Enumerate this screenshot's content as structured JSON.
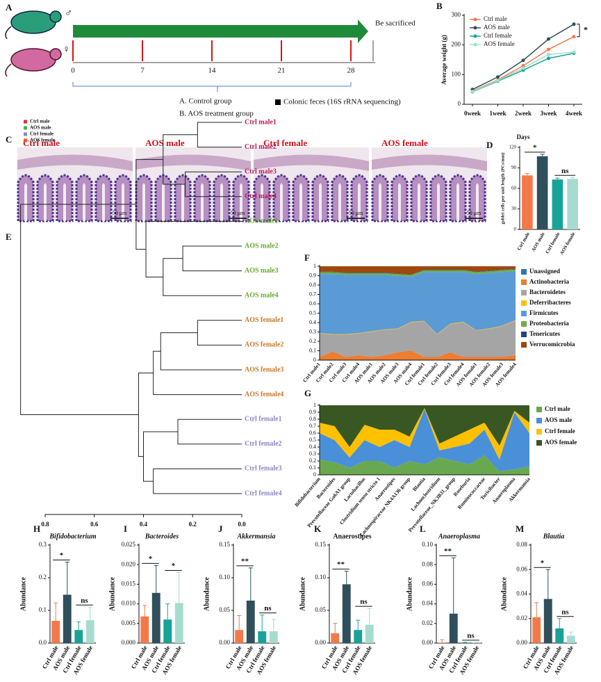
{
  "timeline": {
    "panel_label": "A",
    "male_symbol": "♂",
    "female_symbol": "♀",
    "ticks": [
      0,
      7,
      14,
      21,
      28
    ],
    "end_label": "Be sacrificed",
    "groups": [
      "A.  Control group",
      "B.  AOS treatment group"
    ],
    "sample_label": "Colonic feces (16S rRNA sequencing)"
  },
  "histology": {
    "panel_label": "C",
    "images": [
      {
        "label": "Ctrl male",
        "scale": "50 μm"
      },
      {
        "label": "AOS male",
        "scale": "50 μm"
      },
      {
        "label": "Ctrl female",
        "scale": "50 μm"
      },
      {
        "label": "AOS female",
        "scale": "50 μm"
      }
    ]
  },
  "chart_data": [
    {
      "type": "line",
      "panel_label": "B",
      "ylabel": "Average weight (g)",
      "xlabel": "Days",
      "categories": [
        "0week",
        "1week",
        "2week",
        "3week",
        "4week"
      ],
      "ylim": [
        0,
        300
      ],
      "yticks": [
        0,
        100,
        200,
        300
      ],
      "legend": "upper left",
      "annotations": [
        "*"
      ],
      "series": [
        {
          "name": "Ctrl male",
          "color": "#f4794a",
          "values": [
            45,
            82,
            130,
            185,
            228
          ]
        },
        {
          "name": "AOS male",
          "color": "#2f4f5c",
          "values": [
            50,
            92,
            148,
            220,
            270
          ]
        },
        {
          "name": "Ctrl female",
          "color": "#17a398",
          "values": [
            42,
            78,
            115,
            155,
            172
          ]
        },
        {
          "name": "AOS female",
          "color": "#a6dccf",
          "values": [
            43,
            80,
            122,
            168,
            176
          ]
        }
      ]
    },
    {
      "type": "bar",
      "panel_label": "D",
      "ylabel": "goblet cells per unit length (PCs/mm)",
      "categories": [
        "Ctrl male",
        "AOS male",
        "Ctrl female",
        "AOS female"
      ],
      "colors": [
        "#f4794a",
        "#2f4f5c",
        "#17a398",
        "#a6dccf"
      ],
      "values": [
        79,
        107,
        73,
        74
      ],
      "errors": [
        3,
        3,
        2,
        2
      ],
      "ylim": [
        0,
        120
      ],
      "yticks": [
        0,
        30,
        60,
        90,
        120
      ],
      "annotations": [
        "*",
        "ns"
      ]
    },
    {
      "type": "dendrogram",
      "panel_label": "E",
      "series": [
        {
          "name": "Ctrl male",
          "color": "#e03030"
        },
        {
          "name": "AOS male",
          "color": "#4caf50"
        },
        {
          "name": "Ctrl female",
          "color": "#8888cc"
        },
        {
          "name": "AOS female",
          "color": "#e06020"
        }
      ],
      "leaves": [
        "Ctrl male1",
        "Ctrl male2",
        "Ctrl male3",
        "Ctrl male4",
        "AOS male1",
        "AOS male2",
        "AOS male3",
        "AOS male4",
        "AOS female1",
        "AOS female2",
        "AOS female3",
        "AOS female4",
        "Ctrl female1",
        "Ctrl female2",
        "Ctrl female3",
        "Ctrl female4"
      ],
      "leaf_colors": [
        "#c0185a",
        "#c0185a",
        "#c0185a",
        "#c0185a",
        "#6aa82f",
        "#6aa82f",
        "#6aa82f",
        "#6aa82f",
        "#c87a28",
        "#c87a28",
        "#c87a28",
        "#c87a28",
        "#8a87c8",
        "#8a87c8",
        "#8a87c8",
        "#8a87c8"
      ],
      "merges": [
        [
          0,
          1,
          0.18
        ],
        [
          2,
          3,
          0.23
        ],
        [
          16,
          17,
          0.32
        ],
        [
          5,
          6,
          0.24
        ],
        [
          19,
          7,
          0.32
        ],
        [
          4,
          20,
          0.39
        ],
        [
          18,
          21,
          0.43
        ],
        [
          8,
          9,
          0.18
        ],
        [
          23,
          10,
          0.33
        ],
        [
          24,
          11,
          0.36
        ],
        [
          12,
          13,
          0.26
        ],
        [
          14,
          15,
          0.36
        ],
        [
          26,
          27,
          0.4
        ],
        [
          25,
          28,
          0.42
        ],
        [
          22,
          29,
          0.9
        ]
      ],
      "xlim": [
        0.8,
        0
      ],
      "xticks": [
        0.8,
        0.6,
        0.4,
        0.2,
        {
          "value": 0,
          "label": "0.0"
        }
      ]
    },
    {
      "type": "stacked_area",
      "panel_label": "F",
      "categories": [
        "Ctrl male1",
        "Ctrl male2",
        "Ctrl male3",
        "Ctrl male4",
        "AOS male1",
        "AOS male2",
        "AOS male3",
        "AOS male4",
        "Ctrl female1",
        "Ctrl female2",
        "Ctrl female3",
        "Ctrl female4",
        "AOS female1",
        "AOS female2",
        "AOS female3",
        "AOS female4"
      ],
      "ylim": [
        0,
        1
      ],
      "yticks": [
        0,
        0.1,
        0.2,
        0.3,
        0.4,
        0.5,
        0.6,
        0.7,
        0.8,
        0.9,
        1
      ],
      "series": [
        {
          "name": "Unassigned",
          "color": "#2e75b6",
          "values": [
            0.003,
            0.003,
            0.003,
            0.003,
            0.003,
            0.003,
            0.003,
            0.003,
            0.003,
            0.003,
            0.003,
            0.003,
            0.003,
            0.003,
            0.003,
            0.003
          ]
        },
        {
          "name": "Actinobacteria",
          "color": "#ed7d31",
          "values": [
            0.03,
            0.09,
            0.03,
            0.05,
            0.03,
            0.05,
            0.08,
            0.1,
            0.03,
            0.03,
            0.08,
            0.03,
            0.03,
            0.03,
            0.03,
            0.05
          ]
        },
        {
          "name": "Bacteroidetes",
          "color": "#a5a5a5",
          "values": [
            0.25,
            0.18,
            0.24,
            0.23,
            0.27,
            0.27,
            0.25,
            0.3,
            0.38,
            0.24,
            0.3,
            0.37,
            0.28,
            0.3,
            0.33,
            0.37
          ]
        },
        {
          "name": "Deferribacteres",
          "color": "#ffc000",
          "values": [
            0.005,
            0.005,
            0.005,
            0.005,
            0.005,
            0.005,
            0.005,
            0.005,
            0.005,
            0.005,
            0.005,
            0.005,
            0.005,
            0.005,
            0.005,
            0.005
          ]
        },
        {
          "name": "Firmicutes",
          "color": "#5b9bd5",
          "values": [
            0.63,
            0.64,
            0.63,
            0.62,
            0.6,
            0.58,
            0.56,
            0.48,
            0.52,
            0.66,
            0.55,
            0.53,
            0.6,
            0.59,
            0.57,
            0.52
          ]
        },
        {
          "name": "Proteobacteria",
          "color": "#70ad47",
          "values": [
            0.02,
            0.02,
            0.02,
            0.02,
            0.02,
            0.02,
            0.02,
            0.02,
            0.02,
            0.02,
            0.02,
            0.02,
            0.02,
            0.02,
            0.02,
            0.02
          ]
        },
        {
          "name": "Tenericutes",
          "color": "#264478",
          "values": [
            0.005,
            0.005,
            0.005,
            0.005,
            0.005,
            0.005,
            0.005,
            0.005,
            0.005,
            0.005,
            0.005,
            0.005,
            0.005,
            0.005,
            0.005,
            0.005
          ]
        },
        {
          "name": "Verrucomicrobia",
          "color": "#9e480e",
          "values": [
            0.057,
            0.057,
            0.067,
            0.067,
            0.067,
            0.067,
            0.077,
            0.087,
            0.037,
            0.037,
            0.037,
            0.037,
            0.057,
            0.047,
            0.037,
            0.027
          ]
        }
      ]
    },
    {
      "type": "stacked_area",
      "panel_label": "G",
      "categories": [
        "Bifidobacterium",
        "Bacteroides",
        "Prevotellaceae Ga6A1 group",
        "Lactobacillus",
        "Clostridium sensu stricto 1",
        "Anaerostipes",
        "Lachnospiraceae NK4A136 group",
        "Blautia",
        "Lachnoclostridium",
        "Prevotellaceae_NK3B31_group",
        "Roseburia",
        "Ruminococcaceae",
        "Turicibacter",
        "Anaeroplasma",
        "Akkermansia"
      ],
      "ylim": [
        0,
        1
      ],
      "yticks": [
        0,
        0.1,
        0.2,
        0.3,
        0.4,
        0.5,
        0.6,
        0.7,
        0.8,
        0.9,
        1
      ],
      "series": [
        {
          "name": "Ctrl male",
          "color": "#6aa84f",
          "values": [
            0.22,
            0.18,
            0.1,
            0.2,
            0.2,
            0.1,
            0.2,
            0.15,
            0.25,
            0.2,
            0.15,
            0.28,
            0.05,
            0.08,
            0.12
          ]
        },
        {
          "name": "AOS male",
          "color": "#4a90d9",
          "values": [
            0.38,
            0.32,
            0.15,
            0.3,
            0.2,
            0.4,
            0.2,
            0.8,
            0.1,
            0.2,
            0.3,
            0.37,
            0.17,
            0.82,
            0.48
          ]
        },
        {
          "name": "Ctrl female",
          "color": "#ffc000",
          "values": [
            0.15,
            0.2,
            0.15,
            0.22,
            0.25,
            0.15,
            0.15,
            0.01,
            0.1,
            0.15,
            0.2,
            0.1,
            0.2,
            0.02,
            0.15
          ]
        },
        {
          "name": "AOS female",
          "color": "#385723",
          "values": [
            0.25,
            0.3,
            0.6,
            0.28,
            0.35,
            0.35,
            0.45,
            0.04,
            0.55,
            0.45,
            0.35,
            0.25,
            0.58,
            0.08,
            0.25
          ]
        }
      ]
    },
    {
      "type": "bar",
      "panel_label": "H",
      "title": "Bifidobacterium",
      "italic": true,
      "ylabel": "Abundance",
      "categories": [
        "Ctrl male",
        "AOS male",
        "Ctrl female",
        "AOS female"
      ],
      "colors": [
        "#f4794a",
        "#2f4f5c",
        "#17a398",
        "#a6dccf"
      ],
      "values": [
        0.068,
        0.148,
        0.04,
        0.07
      ],
      "errors": [
        0.055,
        0.1,
        0.025,
        0.04
      ],
      "ylim": [
        0,
        0.3
      ],
      "yticks": [
        {
          "value": 0,
          "label": "0.0"
        },
        0.1,
        0.2,
        0.3
      ],
      "annotations": [
        "*",
        "ns"
      ]
    },
    {
      "type": "bar",
      "panel_label": "I",
      "title": "Bacteroides",
      "italic": true,
      "ylabel": "Abundance",
      "categories": [
        "Ctrl male",
        "AOS male",
        "Ctrl female",
        "AOS female"
      ],
      "colors": [
        "#f4794a",
        "#2f4f5c",
        "#17a398",
        "#a6dccf"
      ],
      "values": [
        0.0068,
        0.0128,
        0.006,
        0.0102
      ],
      "errors": [
        0.0028,
        0.007,
        0.004,
        0.0078
      ],
      "ylim": [
        0,
        0.025
      ],
      "yticks": [
        {
          "value": 0,
          "label": "0.000"
        },
        0.005,
        {
          "value": 0.01,
          "label": "0.010"
        },
        0.015,
        {
          "value": 0.02,
          "label": "0.020"
        },
        0.025
      ],
      "annotations": [
        "*",
        "*"
      ]
    },
    {
      "type": "bar",
      "panel_label": "J",
      "title": "Akkermansia",
      "italic": true,
      "ylabel": "Abundance",
      "categories": [
        "Ctrl male",
        "AOS male",
        "Ctrl female",
        "AOS female"
      ],
      "colors": [
        "#f4794a",
        "#2f4f5c",
        "#17a398",
        "#a6dccf"
      ],
      "values": [
        0.02,
        0.065,
        0.018,
        0.018
      ],
      "errors": [
        0.022,
        0.05,
        0.025,
        0.018
      ],
      "ylim": [
        0,
        0.15
      ],
      "yticks": [
        {
          "value": 0,
          "label": "0.00"
        },
        0.05,
        {
          "value": 0.1,
          "label": "0.10"
        },
        0.15
      ],
      "annotations": [
        "**",
        "ns"
      ]
    },
    {
      "type": "bar",
      "panel_label": "K",
      "title": "Anaerostipes",
      "italic": false,
      "ylabel": "Abundance",
      "categories": [
        "Ctrl male",
        "AOS male",
        "Ctrl female",
        "AOS female"
      ],
      "colors": [
        "#f4794a",
        "#2f4f5c",
        "#17a398",
        "#a6dccf"
      ],
      "values": [
        0.015,
        0.09,
        0.02,
        0.028
      ],
      "errors": [
        0.015,
        0.02,
        0.015,
        0.025
      ],
      "ylim": [
        0,
        0.15
      ],
      "yticks": [
        {
          "value": 0,
          "label": "0.00"
        },
        0.05,
        {
          "value": 0.1,
          "label": "0.10"
        },
        0.15
      ],
      "annotations": [
        "**",
        "ns"
      ]
    },
    {
      "type": "bar",
      "panel_label": "L",
      "title": "Anaeroplasma",
      "italic": true,
      "ylabel": "Abundance",
      "categories": [
        "Ctrl male",
        "AOS male",
        "Ctrl female",
        "AOS female"
      ],
      "colors": [
        "#f4794a",
        "#2f4f5c",
        "#17a398",
        "#a6dccf"
      ],
      "values": [
        0.0005,
        0.03,
        0.0002,
        0.0003
      ],
      "errors": [
        0.003,
        0.057,
        0.0005,
        0.0005
      ],
      "ylim": [
        0,
        0.1
      ],
      "yticks": [
        {
          "value": 0,
          "label": "0.00"
        },
        0.02,
        0.04,
        0.06,
        0.08,
        {
          "value": 0.1,
          "label": "0.10"
        }
      ],
      "annotations": [
        "**",
        "ns"
      ]
    },
    {
      "type": "bar",
      "panel_label": "M",
      "title": "Blautia",
      "italic": true,
      "ylabel": "Abundance",
      "categories": [
        "Ctrl male",
        "AOS male",
        "Ctrl female",
        "AOS female"
      ],
      "colors": [
        "#f4794a",
        "#2f4f5c",
        "#17a398",
        "#a6dccf"
      ],
      "values": [
        0.021,
        0.036,
        0.012,
        0.006
      ],
      "errors": [
        0.012,
        0.024,
        0.008,
        0.003
      ],
      "ylim": [
        0,
        0.08
      ],
      "yticks": [
        {
          "value": 0,
          "label": "0.00"
        },
        0.02,
        0.04,
        0.06,
        0.08
      ],
      "annotations": [
        "*",
        "ns"
      ]
    }
  ]
}
